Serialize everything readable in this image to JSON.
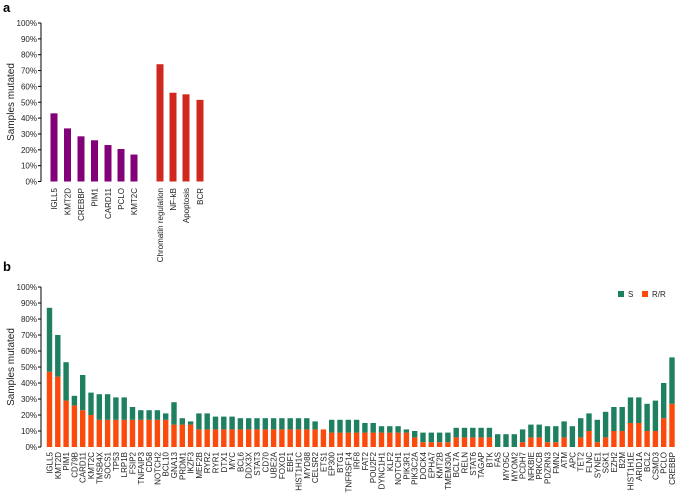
{
  "colors": {
    "genes": "#820078",
    "pathways": "#d0281f",
    "S": "#1e8061",
    "RR": "#fc4a0c"
  },
  "chart_data": [
    {
      "type": "bar",
      "panel_label": "a",
      "ylabel": "Samples mutated",
      "ylim": [
        0,
        100
      ],
      "yticks": [
        "0%",
        "10%",
        "20%",
        "30%",
        "40%",
        "50%",
        "60%",
        "70%",
        "80%",
        "90%",
        "100%"
      ],
      "groups": [
        {
          "categories": [
            "IGLL5",
            "KMT2D",
            "CREBBP",
            "PIM1",
            "CARD11",
            "PCLO",
            "KMT2C"
          ],
          "values": [
            43,
            33.5,
            28.5,
            26,
            23,
            20.5,
            17
          ],
          "color": "#820078"
        },
        {
          "categories": [
            "Chromatin regulation",
            "NF-kB",
            "Apoptosis",
            "BCR"
          ],
          "values": [
            74,
            56,
            55,
            51.5
          ],
          "color": "#d0281f"
        }
      ]
    },
    {
      "type": "bar",
      "stacked": true,
      "panel_label": "b",
      "ylabel": "Samples mutated",
      "ylim": [
        0,
        100
      ],
      "yticks": [
        "0%",
        "10%",
        "20%",
        "30%",
        "40%",
        "50%",
        "60%",
        "70%",
        "80%",
        "90%",
        "100%"
      ],
      "legend_position": "top-right",
      "categories": [
        "IGLL5",
        "KMT2D",
        "PIM1",
        "CD79B",
        "CARD11",
        "KMT2C",
        "TMSB4X",
        "SOCS1",
        "TP53",
        "LRP1B",
        "FSIP2",
        "TNFAIP3",
        "CD58",
        "NOTCH2",
        "BCL10",
        "GNA13",
        "PRDM1",
        "IKZF3",
        "MEF2B",
        "RYR2",
        "RYR1",
        "DTX1",
        "MYC",
        "BCL6",
        "DDX3X",
        "STAT3",
        "CD70",
        "UBE2A",
        "FOXO1",
        "EBF1",
        "HIST1H1C",
        "MYD88",
        "CELSR2",
        "ETS1",
        "EP300",
        "BTG1",
        "TNFRSF14",
        "IRF8",
        "FAT2",
        "POU2F2",
        "DYNC1H1",
        "KLF2",
        "NOTCH1",
        "PIK3R1",
        "PIK3C2A",
        "DOCK4",
        "EPHA7",
        "KMT2B",
        "TMEM30A",
        "BCL7A",
        "RELN",
        "STAT6",
        "TAGAP",
        "BTK",
        "FAS",
        "MYO5C",
        "MYOM2",
        "PCDH7",
        "NFKBIE",
        "PRKCB",
        "PDZRN3",
        "FMN2",
        "ATM",
        "APC",
        "TET2",
        "FLNC",
        "SYNE1",
        "SGK1",
        "EZH2",
        "B2M",
        "HIST1H1E",
        "ARID1A",
        "BCL2",
        "CSMD3",
        "PCLO",
        "CREBBP"
      ],
      "series": [
        {
          "name": "R/R",
          "color": "#fc4a0c",
          "values": [
            47,
            44,
            29,
            26,
            23,
            20,
            17,
            17,
            17,
            17,
            17,
            17,
            17,
            17,
            17,
            14,
            14,
            14,
            11,
            11,
            11,
            11,
            11,
            11,
            11,
            11,
            11,
            11,
            11,
            11,
            11,
            11,
            11,
            11,
            9,
            9,
            9,
            9,
            9,
            9,
            9,
            9,
            9,
            9,
            6,
            3,
            3,
            3,
            3,
            6,
            6,
            6,
            6,
            6,
            0,
            0,
            0,
            3,
            6,
            6,
            3,
            3,
            6,
            0,
            6,
            10,
            3,
            6,
            10,
            10,
            15,
            15,
            10,
            10,
            18,
            27
          ]
        },
        {
          "name": "S",
          "color": "#1e8061",
          "values": [
            40,
            26,
            24,
            6,
            22,
            14,
            16,
            16,
            14,
            14,
            8,
            6,
            6,
            6,
            4,
            14,
            4,
            2,
            10,
            10,
            8,
            8,
            8,
            7,
            7,
            7,
            7,
            7,
            7,
            7,
            7,
            7,
            5,
            0,
            8,
            8,
            8,
            8,
            6,
            6,
            4,
            4,
            4,
            2,
            4,
            6,
            6,
            6,
            6,
            6,
            6,
            6,
            6,
            6,
            8,
            8,
            8,
            8,
            8,
            8,
            10,
            10,
            10,
            13,
            12,
            11,
            14,
            16,
            15,
            15,
            16,
            16,
            17,
            19,
            22,
            29
          ]
        }
      ]
    }
  ]
}
